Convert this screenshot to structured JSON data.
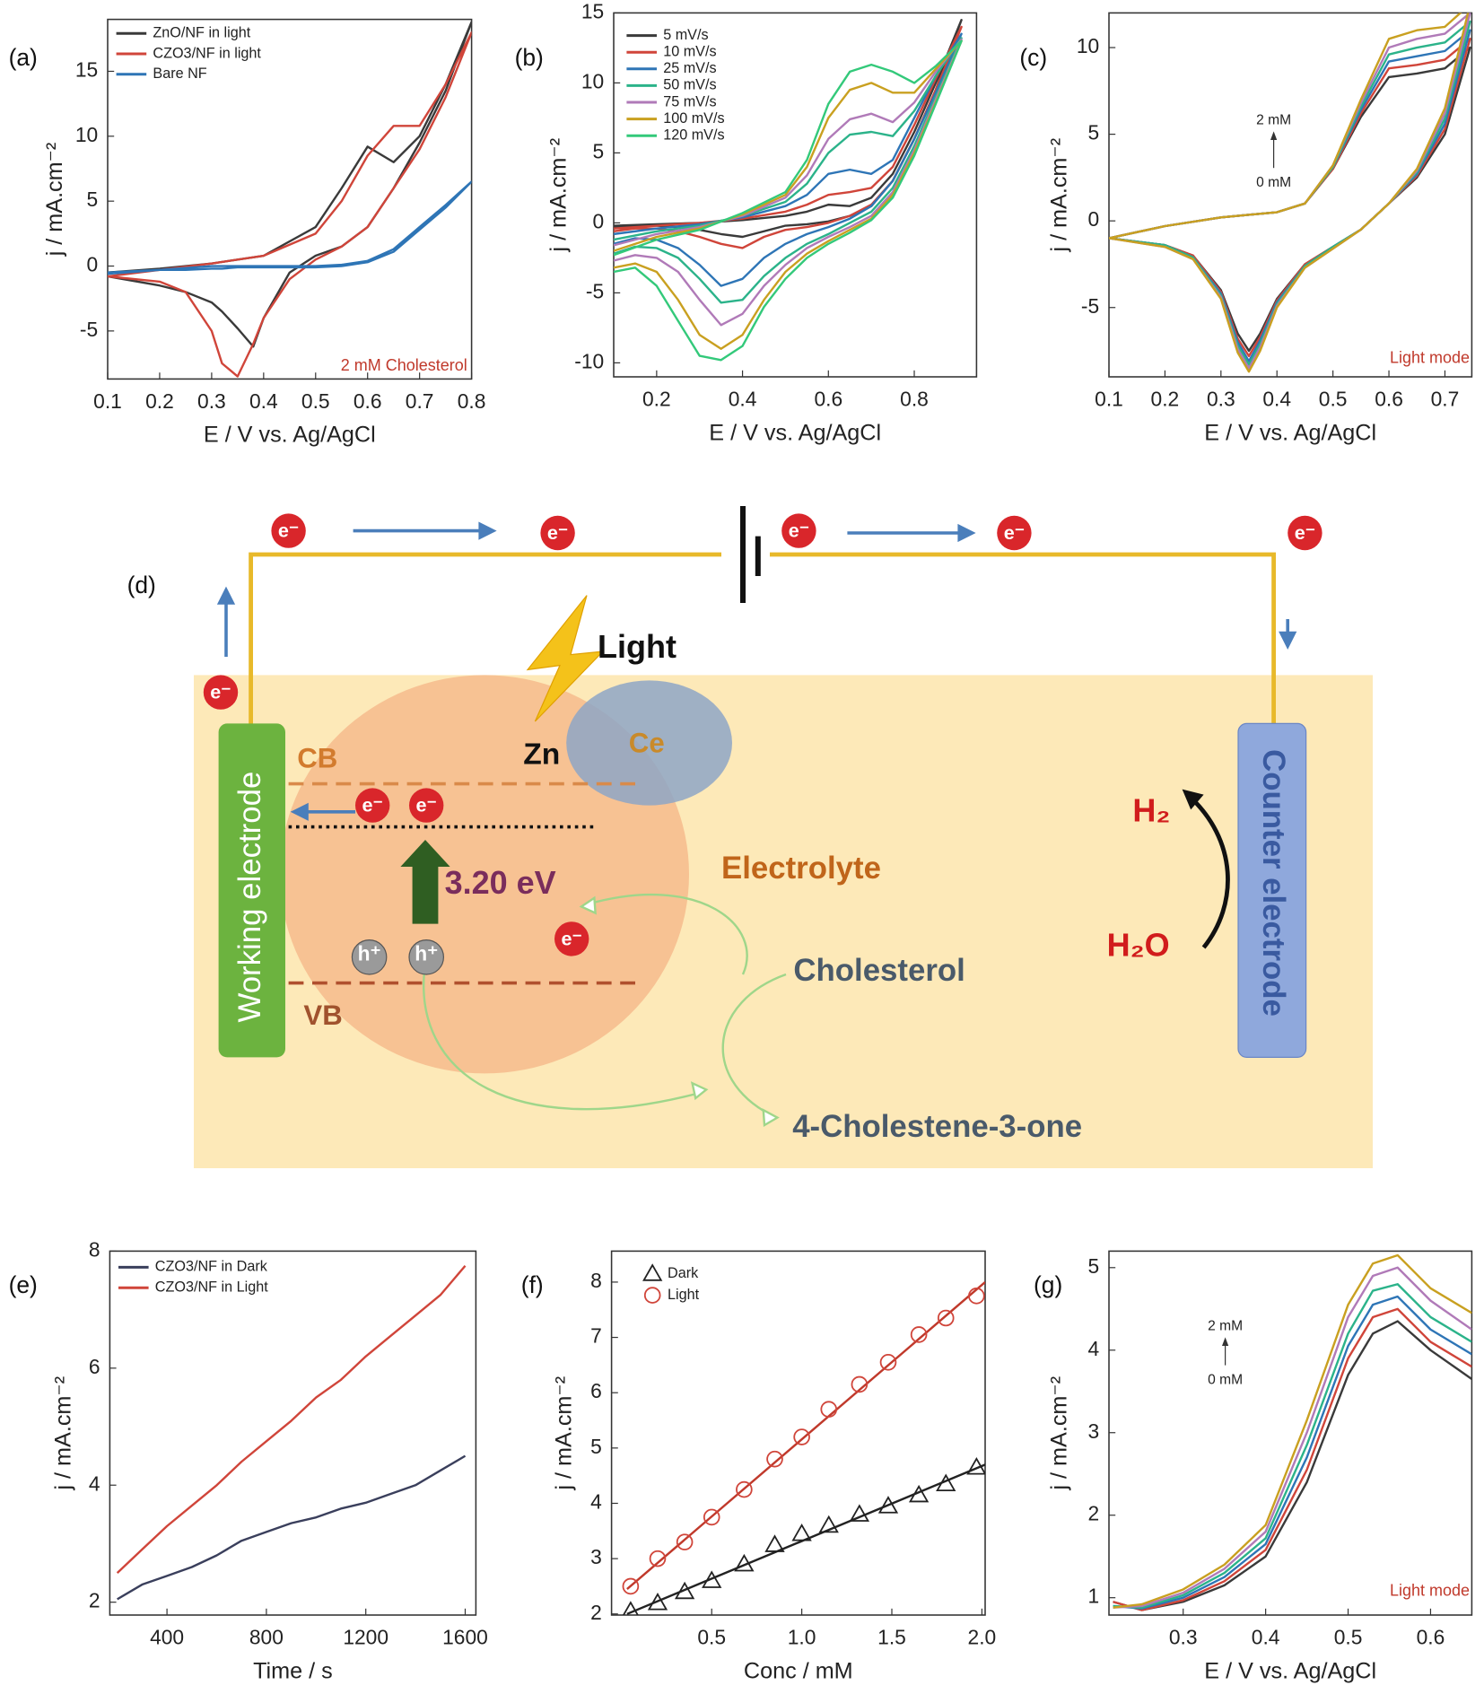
{
  "chart_data": [
    {
      "type": "line",
      "panel_label": "(a)",
      "x_label": "E / V vs. Ag/AgCl",
      "y_label": "j / mA.cm⁻²",
      "xlim": [
        0.1,
        0.8
      ],
      "ylim": [
        -8.7,
        19
      ],
      "xticks": [
        0.1,
        0.2,
        0.3,
        0.4,
        0.5,
        0.6,
        0.7,
        0.8
      ],
      "yticks": [
        -5,
        0,
        5,
        10,
        15
      ],
      "legend": "upper left",
      "annotation": "2 mM Cholesterol",
      "x": [
        0.1,
        0.2,
        0.3,
        0.4,
        0.5,
        0.55,
        0.6,
        0.65,
        0.7,
        0.75,
        0.8,
        0.75,
        0.7,
        0.65,
        0.6,
        0.55,
        0.5,
        0.45,
        0.4,
        0.38,
        0.35,
        0.32,
        0.3,
        0.25,
        0.2,
        0.1
      ],
      "series": [
        {
          "name": "ZnO/NF in light",
          "color": "#3a3a3a",
          "values": [
            -0.5,
            -0.2,
            0.2,
            0.8,
            3,
            6,
            9.2,
            8,
            10,
            14,
            18.8,
            13.5,
            9.5,
            6,
            3,
            1.5,
            0.8,
            -0.5,
            -4,
            -6.2,
            -4.8,
            -3.5,
            -2.8,
            -2,
            -1.5,
            -0.8
          ]
        },
        {
          "name": "CZO3/NF in light",
          "color": "#d0453a",
          "values": [
            -0.8,
            -0.3,
            0.2,
            0.8,
            2.5,
            5,
            8.5,
            10.8,
            10.8,
            14,
            18,
            13,
            9,
            6,
            3,
            1.5,
            0.5,
            -1,
            -4,
            -6,
            -8.5,
            -7.5,
            -5,
            -2,
            -1.2,
            -0.8
          ]
        },
        {
          "name": "Bare NF",
          "color": "#2e75b6",
          "values": [
            -0.5,
            -0.3,
            0,
            0,
            0,
            0.1,
            0.4,
            1.3,
            3,
            4.7,
            6.5,
            4.5,
            2.8,
            1.1,
            0.3,
            0,
            -0.1,
            -0.1,
            -0.1,
            -0.1,
            -0.1,
            -0.2,
            -0.2,
            -0.3,
            -0.3,
            -0.6
          ]
        }
      ]
    },
    {
      "type": "line",
      "panel_label": "(b)",
      "x_label": "E / V vs. Ag/AgCl",
      "y_label": "j / mA.cm⁻²",
      "xlim": [
        0.1,
        0.945
      ],
      "ylim": [
        -11,
        15
      ],
      "xticks": [
        0.2,
        0.4,
        0.6,
        0.8
      ],
      "yticks": [
        -10,
        -5,
        0,
        5,
        10,
        15
      ],
      "legend": "upper left",
      "x": [
        0.1,
        0.2,
        0.3,
        0.4,
        0.5,
        0.55,
        0.6,
        0.65,
        0.7,
        0.75,
        0.8,
        0.85,
        0.91,
        0.85,
        0.8,
        0.75,
        0.7,
        0.65,
        0.6,
        0.55,
        0.5,
        0.45,
        0.4,
        0.35,
        0.3,
        0.25,
        0.2,
        0.15,
        0.1
      ],
      "series": [
        {
          "name": "5 mV/s",
          "color": "#3a3a3a",
          "values": [
            -0.2,
            -0.1,
            0,
            0.2,
            0.5,
            0.8,
            1.3,
            1.2,
            1.8,
            3.5,
            6.5,
            10,
            14.5,
            9.5,
            6,
            3,
            1.2,
            0.5,
            0.1,
            -0.1,
            -0.2,
            -0.6,
            -1,
            -0.8,
            -0.5,
            -0.3,
            -0.2,
            -0.2,
            -0.3
          ]
        },
        {
          "name": "10 mV/s",
          "color": "#d0453a",
          "values": [
            -0.4,
            -0.2,
            0,
            0.3,
            0.8,
            1.3,
            2,
            2.2,
            2.5,
            4,
            7,
            10.3,
            14,
            9.5,
            6,
            3,
            1.3,
            0.5,
            0,
            -0.3,
            -0.5,
            -1,
            -1.8,
            -1.5,
            -1,
            -0.6,
            -0.4,
            -0.4,
            -0.6
          ]
        },
        {
          "name": "25 mV/s",
          "color": "#2e75b6",
          "values": [
            -0.8,
            -0.4,
            -0.1,
            0.4,
            1.2,
            2,
            3.5,
            3.8,
            3.5,
            4.5,
            7.5,
            10.5,
            13.5,
            9.3,
            6,
            3,
            1.2,
            0.3,
            -0.3,
            -0.8,
            -1.5,
            -2.5,
            -4,
            -4.5,
            -3,
            -1.8,
            -1.2,
            -1.1,
            -1.5
          ]
        },
        {
          "name": "50 mV/s",
          "color": "#2bb38a",
          "values": [
            -1.2,
            -0.6,
            -0.2,
            0.5,
            1.5,
            2.8,
            5,
            6.3,
            6.5,
            6.2,
            8,
            10.5,
            13.2,
            9,
            5.5,
            2.5,
            0.8,
            0,
            -0.8,
            -1.5,
            -2.5,
            -3.8,
            -5.5,
            -5.7,
            -4,
            -2.5,
            -1.8,
            -1.7,
            -2.2
          ]
        },
        {
          "name": "75 mV/s",
          "color": "#b07ab8",
          "values": [
            -1.6,
            -0.8,
            -0.3,
            0.5,
            1.8,
            3.4,
            6,
            7.4,
            7.8,
            7.2,
            8.6,
            10.8,
            13.1,
            8.8,
            5.2,
            2.2,
            0.5,
            -0.3,
            -1,
            -1.8,
            -3,
            -4.5,
            -6.5,
            -7.3,
            -5.5,
            -3.5,
            -2.5,
            -2.3,
            -2.7
          ]
        },
        {
          "name": "100 mV/s",
          "color": "#c9a020",
          "values": [
            -2,
            -1,
            -0.4,
            0.6,
            2,
            4,
            7.5,
            9.5,
            10,
            9.3,
            9.3,
            11,
            13,
            8.6,
            5,
            2,
            0.3,
            -0.5,
            -1.3,
            -2.2,
            -3.5,
            -5.5,
            -8,
            -9,
            -8,
            -5.5,
            -3.5,
            -2.9,
            -3.2
          ]
        },
        {
          "name": "120 mV/s",
          "color": "#33c97a",
          "values": [
            -2.3,
            -1.2,
            -0.5,
            0.7,
            2.2,
            4.5,
            8.5,
            10.8,
            11.3,
            10.8,
            10,
            11.2,
            13,
            8.5,
            4.8,
            1.8,
            0.2,
            -0.7,
            -1.5,
            -2.5,
            -4,
            -6,
            -8.8,
            -9.8,
            -9.5,
            -7,
            -4.5,
            -3.2,
            -3.5
          ]
        }
      ]
    },
    {
      "type": "line",
      "panel_label": "(c)",
      "x_label": "E / V vs. Ag/AgCl",
      "y_label": "j / mA.cm⁻²",
      "xlim": [
        0.1,
        0.748
      ],
      "ylim": [
        -9,
        12
      ],
      "xticks": [
        0.1,
        0.2,
        0.3,
        0.4,
        0.5,
        0.6,
        0.7
      ],
      "yticks": [
        -5,
        0,
        5,
        10
      ],
      "annotation": "Light mode",
      "arrow_top": "2 mM",
      "arrow_bottom": "0 mM",
      "x": [
        0.1,
        0.2,
        0.3,
        0.4,
        0.45,
        0.5,
        0.55,
        0.6,
        0.65,
        0.7,
        0.745,
        0.7,
        0.65,
        0.6,
        0.55,
        0.5,
        0.45,
        0.4,
        0.37,
        0.35,
        0.33,
        0.3,
        0.25,
        0.2,
        0.1
      ],
      "series": [
        {
          "color": "#3a3a3a",
          "values": [
            -1,
            -0.3,
            0.2,
            0.5,
            1,
            3,
            6,
            8.3,
            8.5,
            8.8,
            10,
            5,
            2.5,
            1,
            -0.5,
            -1.5,
            -2.5,
            -4.5,
            -6.5,
            -7.5,
            -6.5,
            -4,
            -2,
            -1.4,
            -1
          ]
        },
        {
          "color": "#d0453a",
          "values": [
            -1,
            -0.3,
            0.2,
            0.5,
            1,
            3,
            6.2,
            8.8,
            9,
            9.3,
            10.5,
            5.3,
            2.6,
            1,
            -0.5,
            -1.5,
            -2.5,
            -4.6,
            -6.7,
            -7.8,
            -6.8,
            -4.1,
            -2,
            -1.4,
            -1
          ]
        },
        {
          "color": "#2e75b6",
          "values": [
            -1,
            -0.3,
            0.2,
            0.5,
            1,
            3.1,
            6.4,
            9.2,
            9.5,
            9.8,
            11,
            5.6,
            2.7,
            1,
            -0.5,
            -1.5,
            -2.6,
            -4.7,
            -6.9,
            -8.1,
            -7,
            -4.2,
            -2.1,
            -1.4,
            -1
          ]
        },
        {
          "color": "#2bb38a",
          "values": [
            -1,
            -0.3,
            0.2,
            0.5,
            1,
            3.1,
            6.6,
            9.6,
            10,
            10.3,
            11.5,
            5.9,
            2.8,
            1,
            -0.5,
            -1.5,
            -2.6,
            -4.8,
            -7.1,
            -8.3,
            -7.2,
            -4.3,
            -2.1,
            -1.4,
            -1
          ]
        },
        {
          "color": "#b07ab8",
          "values": [
            -1,
            -0.3,
            0.2,
            0.5,
            1,
            3.2,
            6.8,
            10,
            10.5,
            10.8,
            12,
            6.2,
            2.9,
            1,
            -0.5,
            -1.6,
            -2.7,
            -4.9,
            -7.3,
            -8.5,
            -7.4,
            -4.4,
            -2.2,
            -1.5,
            -1
          ]
        },
        {
          "color": "#c9a020",
          "values": [
            -1,
            -0.3,
            0.2,
            0.5,
            1,
            3.2,
            7,
            10.5,
            11,
            11.2,
            12.5,
            6.5,
            3,
            1,
            -0.5,
            -1.6,
            -2.7,
            -5,
            -7.5,
            -8.7,
            -7.6,
            -4.5,
            -2.2,
            -1.5,
            -1
          ]
        }
      ]
    },
    {
      "type": "line",
      "panel_label": "(e)",
      "x_label": "Time / s",
      "y_label": "j / mA.cm⁻²",
      "xlim": [
        170,
        1643
      ],
      "ylim": [
        1.78,
        8
      ],
      "xticks": [
        400,
        800,
        1200,
        1600
      ],
      "yticks": [
        2,
        4,
        6,
        8
      ],
      "legend": "upper left",
      "x": [
        200,
        300,
        400,
        500,
        600,
        700,
        800,
        900,
        1000,
        1100,
        1200,
        1300,
        1400,
        1500,
        1600
      ],
      "series": [
        {
          "name": "CZO3/NF in Dark",
          "color": "#3a3f5c",
          "values": [
            2.05,
            2.3,
            2.45,
            2.6,
            2.8,
            3.05,
            3.2,
            3.35,
            3.45,
            3.6,
            3.7,
            3.85,
            4.0,
            4.25,
            4.5
          ]
        },
        {
          "name": "CZO3/NF in Light",
          "color": "#d0453a",
          "values": [
            2.5,
            2.9,
            3.3,
            3.65,
            4.0,
            4.4,
            4.75,
            5.1,
            5.5,
            5.8,
            6.2,
            6.55,
            6.9,
            7.25,
            7.75
          ]
        }
      ]
    },
    {
      "type": "scatter",
      "panel_label": "(f)",
      "x_label": "Conc / mM",
      "y_label": "j / mA.cm⁻²",
      "xlim": [
        -0.056,
        2.018
      ],
      "ylim": [
        1.98,
        8.56
      ],
      "xticks": [
        0.5,
        {
          "value": 1,
          "label": "1.0"
        },
        1.5,
        {
          "value": 2,
          "label": "2.0"
        }
      ],
      "yticks": [
        2,
        3,
        4,
        5,
        6,
        7,
        8
      ],
      "legend": "upper left",
      "x": [
        0.05,
        0.2,
        0.35,
        0.5,
        0.68,
        0.85,
        1.0,
        1.15,
        1.32,
        1.48,
        1.65,
        1.8,
        1.97
      ],
      "series": [
        {
          "name": "Dark",
          "color": "#222222",
          "marker": "triangle",
          "values": [
            2.05,
            2.2,
            2.4,
            2.6,
            2.9,
            3.25,
            3.45,
            3.6,
            3.8,
            3.95,
            4.15,
            4.35,
            4.65
          ]
        },
        {
          "name": "Light",
          "color": "#d0453a",
          "marker": "circle",
          "values": [
            2.5,
            3.0,
            3.3,
            3.75,
            4.25,
            4.8,
            5.2,
            5.7,
            6.15,
            6.55,
            7.05,
            7.35,
            7.75
          ]
        }
      ],
      "fits": [
        {
          "color": "#222222",
          "x": [
            0.03,
            2.018
          ],
          "values": [
            2.0,
            4.7
          ]
        },
        {
          "color": "#c0392b",
          "x": [
            0.03,
            2.018
          ],
          "values": [
            2.45,
            8.0
          ]
        }
      ]
    },
    {
      "type": "line",
      "panel_label": "(g)",
      "x_label": "E / V vs.  Ag/AgCl",
      "y_label": "j / mA.cm⁻²",
      "xlim": [
        0.21,
        0.65
      ],
      "ylim": [
        0.79,
        5.2
      ],
      "xticks": [
        0.3,
        0.4,
        0.5,
        0.6
      ],
      "yticks": [
        1,
        2,
        3,
        4,
        5
      ],
      "annotation": "Light mode",
      "arrow_top": "2 mM",
      "arrow_bottom": "0 mM",
      "x": [
        0.215,
        0.25,
        0.3,
        0.35,
        0.4,
        0.45,
        0.5,
        0.53,
        0.56,
        0.6,
        0.65
      ],
      "series": [
        {
          "color": "#3a3a3a",
          "values": [
            0.95,
            0.85,
            0.95,
            1.15,
            1.5,
            2.4,
            3.7,
            4.2,
            4.35,
            4.0,
            3.65
          ]
        },
        {
          "color": "#d0453a",
          "values": [
            0.95,
            0.85,
            0.97,
            1.2,
            1.58,
            2.55,
            3.9,
            4.4,
            4.5,
            4.1,
            3.8
          ]
        },
        {
          "color": "#2e75b6",
          "values": [
            0.9,
            0.87,
            1.0,
            1.25,
            1.65,
            2.7,
            4.05,
            4.55,
            4.65,
            4.25,
            3.95
          ]
        },
        {
          "color": "#2bb38a",
          "values": [
            0.9,
            0.88,
            1.03,
            1.3,
            1.72,
            2.85,
            4.2,
            4.72,
            4.8,
            4.4,
            4.1
          ]
        },
        {
          "color": "#b07ab8",
          "values": [
            0.88,
            0.9,
            1.06,
            1.35,
            1.8,
            3.0,
            4.4,
            4.9,
            5.0,
            4.6,
            4.25
          ]
        },
        {
          "color": "#c9a020",
          "values": [
            0.88,
            0.92,
            1.1,
            1.4,
            1.88,
            3.15,
            4.55,
            5.05,
            5.15,
            4.75,
            4.45
          ]
        }
      ]
    }
  ],
  "diagram": {
    "panel_label": "(d)",
    "electron": "e⁻",
    "hole": "h⁺",
    "light": "Light",
    "zn": "Zn",
    "ce": "Ce",
    "cb": "CB",
    "vb": "VB",
    "gap": "3.20 eV",
    "electrolyte": "Electrolyte",
    "cholesterol": "Cholesterol",
    "product": "4-Cholestene-3-one",
    "working": "Working electrode",
    "counter": "Counter electrode",
    "h2": "H₂",
    "h2o": "H₂O"
  }
}
